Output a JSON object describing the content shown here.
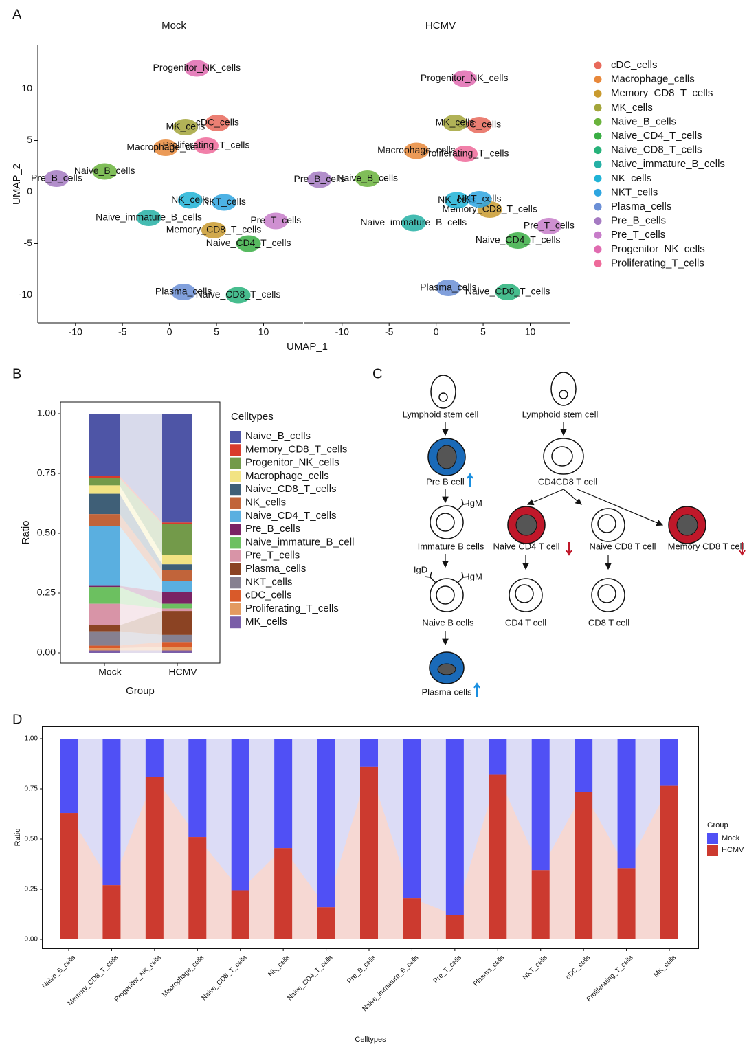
{
  "panel_labels": [
    "A",
    "B",
    "C",
    "D"
  ],
  "chart_data": [
    {
      "type": "scatter",
      "facets": [
        "Mock",
        "HCMV"
      ],
      "xlabel": "UMAP_1",
      "ylabel": "UMAP_2",
      "xlim": [
        -14,
        14.2
      ],
      "ylim": [
        -12.7,
        14.3
      ],
      "xticks": [
        -10,
        -5,
        0,
        5,
        10
      ],
      "yticks": [
        -10,
        -5,
        0,
        5,
        10
      ],
      "series": [
        {
          "name": "cDC_cells",
          "color": "#e8695a",
          "x": [
            5.1,
            4.6
          ],
          "y": [
            6.7,
            6.5
          ]
        },
        {
          "name": "Macrophage_cells",
          "color": "#e8883a",
          "x": [
            -0.4,
            -2.1
          ],
          "y": [
            4.3,
            4.0
          ]
        },
        {
          "name": "Memory_CD8_T_cells",
          "color": "#c99a2e",
          "x": [
            4.7,
            5.7
          ],
          "y": [
            -3.7,
            -1.7
          ]
        },
        {
          "name": "MK_cells",
          "color": "#a3a53a",
          "x": [
            1.7,
            2.0
          ],
          "y": [
            6.3,
            6.7
          ]
        },
        {
          "name": "Naive_B_cells",
          "color": "#6ab33c",
          "x": [
            -6.9,
            -7.3
          ],
          "y": [
            2.0,
            1.3
          ]
        },
        {
          "name": "Naive_CD4_T_cells",
          "color": "#3aae44",
          "x": [
            8.4,
            8.7
          ],
          "y": [
            -5.0,
            -4.7
          ]
        },
        {
          "name": "Naive_CD8_T_cells",
          "color": "#27b27a",
          "x": [
            7.3,
            7.6
          ],
          "y": [
            -10.0,
            -9.7
          ]
        },
        {
          "name": "Naive_immature_B_cells",
          "color": "#25b0a5",
          "x": [
            -2.2,
            -2.4
          ],
          "y": [
            -2.5,
            -3.0
          ]
        },
        {
          "name": "NK_cells",
          "color": "#1fb3d6",
          "x": [
            2.2,
            2.2
          ],
          "y": [
            -0.8,
            -0.8
          ]
        },
        {
          "name": "NKT_cells",
          "color": "#2ea5e0",
          "x": [
            5.8,
            4.6
          ],
          "y": [
            -1.0,
            -0.7
          ]
        },
        {
          "name": "Plasma_cells",
          "color": "#6b8fd6",
          "x": [
            1.5,
            1.3
          ],
          "y": [
            -9.7,
            -9.3
          ]
        },
        {
          "name": "Pre_B_cells",
          "color": "#a57ac2",
          "x": [
            -12.0,
            -12.4
          ],
          "y": [
            1.3,
            1.2
          ]
        },
        {
          "name": "Pre_T_cells",
          "color": "#c77cc9",
          "x": [
            11.3,
            12.0
          ],
          "y": [
            -2.8,
            -3.3
          ]
        },
        {
          "name": "Progenitor_NK_cells",
          "color": "#e06bb0",
          "x": [
            2.9,
            3.0
          ],
          "y": [
            12.0,
            11.0
          ]
        },
        {
          "name": "Proliferating_T_cells",
          "color": "#ee6a9a",
          "x": [
            3.9,
            3.1
          ],
          "y": [
            4.5,
            3.7
          ]
        }
      ]
    },
    {
      "type": "bar",
      "stacked": true,
      "categories": [
        "Mock",
        "HCMV"
      ],
      "xlabel": "Group",
      "ylabel": "Ratio",
      "legend_title": "Celltypes",
      "ylim": [
        0,
        1
      ],
      "yticks": [
        {
          "value": 0,
          "label": "0.00"
        },
        {
          "value": 0.25,
          "label": "0.25"
        },
        {
          "value": 0.5,
          "label": "0.50"
        },
        {
          "value": 0.75,
          "label": "0.75"
        },
        {
          "value": 1,
          "label": "1.00"
        }
      ],
      "series": [
        {
          "name": "Naive_B_cells",
          "color": "#4e55a6",
          "values": [
            0.26,
            0.455
          ]
        },
        {
          "name": "Memory_CD8_T_cells",
          "color": "#d93b2b",
          "values": [
            0.01,
            0.005
          ]
        },
        {
          "name": "Progenitor_NK_cells",
          "color": "#739a4a",
          "values": [
            0.03,
            0.13
          ]
        },
        {
          "name": "Macrophage_cells",
          "color": "#f2e383",
          "values": [
            0.035,
            0.04
          ]
        },
        {
          "name": "Naive_CD8_T_cells",
          "color": "#3f5f77",
          "values": [
            0.085,
            0.025
          ]
        },
        {
          "name": "NK_cells",
          "color": "#c1643a",
          "values": [
            0.05,
            0.045
          ]
        },
        {
          "name": "Naive_CD4_T_cells",
          "color": "#5aafe0",
          "values": [
            0.25,
            0.045
          ]
        },
        {
          "name": "Pre_B_cells",
          "color": "#7a2364",
          "values": [
            0.005,
            0.05
          ]
        },
        {
          "name": "Naive_immature_B_cell",
          "color": "#6cc060",
          "values": [
            0.07,
            0.02
          ]
        },
        {
          "name": "Pre_T_cells",
          "color": "#d894a7",
          "values": [
            0.09,
            0.01
          ]
        },
        {
          "name": "Plasma_cells",
          "color": "#8b4323",
          "values": [
            0.025,
            0.1
          ]
        },
        {
          "name": "NKT_cells",
          "color": "#868090",
          "values": [
            0.06,
            0.03
          ]
        },
        {
          "name": "cDC_cells",
          "color": "#d95a2a",
          "values": [
            0.01,
            0.02
          ]
        },
        {
          "name": "Proliferating_T_cells",
          "color": "#e39a60",
          "values": [
            0.01,
            0.015
          ]
        },
        {
          "name": "MK_cells",
          "color": "#7a5ea8",
          "values": [
            0.01,
            0.01
          ]
        }
      ]
    },
    {
      "type": "bar",
      "stacked": true,
      "xlabel": "Celltypes",
      "ylabel": "Ratio",
      "legend_title": "Group",
      "categories": [
        "Naive_B_cells",
        "Memory_CD8_T_cells",
        "Progenitor_NK_cells",
        "Macrophage_cells",
        "Naive_CD8_T_cells",
        "NK_cells",
        "Naive_CD4_T_cells",
        "Pre_B_cells",
        "Naive_immature_B_cells",
        "Pre_T_cells",
        "Plasma_cells",
        "NKT_cells",
        "cDC_cells",
        "Proliferating_T_cells",
        "MK_cells"
      ],
      "ylim": [
        0,
        1
      ],
      "yticks": [
        {
          "value": 0,
          "label": "0.00"
        },
        {
          "value": 0.25,
          "label": "0.25"
        },
        {
          "value": 0.5,
          "label": "0.50"
        },
        {
          "value": 0.75,
          "label": "0.75"
        },
        {
          "value": 1,
          "label": "1.00"
        }
      ],
      "series": [
        {
          "name": "Mock",
          "color": "#5050f5",
          "values": [
            0.37,
            0.73,
            0.19,
            0.49,
            0.755,
            0.545,
            0.84,
            0.14,
            0.795,
            0.88,
            0.18,
            0.655,
            0.265,
            0.645,
            0.235
          ]
        },
        {
          "name": "HCMV",
          "color": "#cc3a2f",
          "values": [
            0.63,
            0.27,
            0.81,
            0.51,
            0.245,
            0.455,
            0.16,
            0.86,
            0.205,
            0.12,
            0.82,
            0.345,
            0.735,
            0.355,
            0.765
          ]
        }
      ]
    }
  ],
  "diagram": {
    "labels": [
      "Lymphoid stem cell",
      "Lymphoid stem cell",
      "Pre B cell",
      "CD4CD8 T cell",
      "Immature B cells",
      "Naive CD4 T cell",
      "Naive CD8 T cell",
      "Memory CD8 T cell",
      "Naive B cells",
      "CD4 T cell",
      "CD8 T cell",
      "Plasma cells"
    ],
    "markers": [
      "IgM",
      "IgD",
      "IgM"
    ]
  }
}
